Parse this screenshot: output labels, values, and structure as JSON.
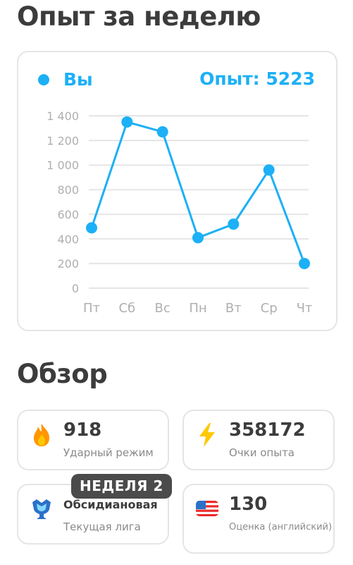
{
  "headings": {
    "week": "Опыт за неделю",
    "overview": "Обзор"
  },
  "chart": {
    "legend_name": "Вы",
    "xp_label": "Опыт:",
    "xp_total": "5223"
  },
  "chart_data": {
    "type": "line",
    "categories": [
      "Пт",
      "Сб",
      "Вс",
      "Пн",
      "Вт",
      "Ср",
      "Чт"
    ],
    "series": [
      {
        "name": "Вы",
        "values": [
          490,
          1350,
          1270,
          410,
          520,
          960,
          200
        ]
      }
    ],
    "yticks": [
      0,
      200,
      400,
      600,
      800,
      1000,
      1200,
      1400
    ],
    "ytick_labels": [
      "0",
      "200",
      "400",
      "600",
      "800",
      "1 000",
      "1 200",
      "1 400"
    ],
    "ylim": [
      0,
      1400
    ],
    "grid": true,
    "color": "#1cb0f6"
  },
  "stats": {
    "streak": {
      "value": "918",
      "label": "Ударный режим",
      "icon": "flame-icon",
      "color": "#ff9600"
    },
    "xp": {
      "value": "358172",
      "label": "Очки опыта",
      "icon": "lightning-icon",
      "color": "#ffc800"
    },
    "league": {
      "value": "Обсидиановая",
      "label": "Текущая лига",
      "icon": "trophy-icon",
      "badge": "НЕДЕЛЯ 2"
    },
    "score": {
      "value": "130",
      "label": "Оценка (английский)",
      "icon": "us-flag-icon"
    }
  }
}
